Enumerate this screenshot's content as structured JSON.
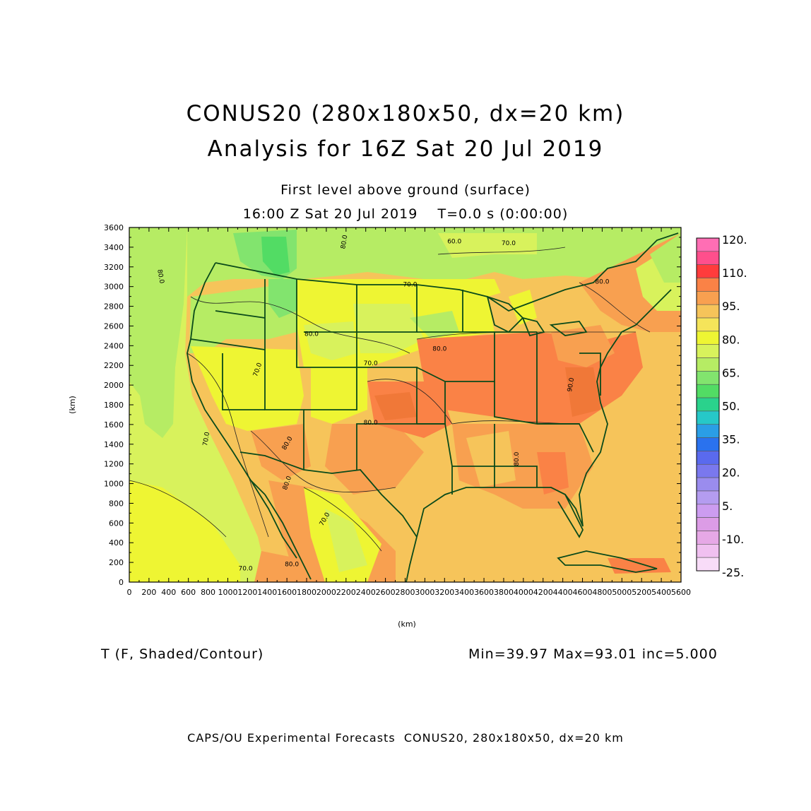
{
  "title": "CONUS20 (280x180x50, dx=20 km)",
  "subtitle": "Analysis for 16Z Sat 20 Jul 2019",
  "level": "First level above ground (surface)",
  "valid_time": "16:00 Z Sat 20 Jul 2019    T=0.0 s (0:00:00)",
  "field_label": "T (F, Shaded/Contour)",
  "stats": "Min=39.97 Max=93.01 inc=5.000",
  "footer": "CAPS/OU Experimental Forecasts  CONUS20, 280x180x50, dx=20 km",
  "axes": {
    "x_label": "(km)",
    "y_label": "(km)",
    "x_ticks": [
      "0",
      "200",
      "400",
      "600",
      "800",
      "1000",
      "1200",
      "1400",
      "1600",
      "1800",
      "2000",
      "2200",
      "2400",
      "2600",
      "2800",
      "3000",
      "3200",
      "3400",
      "3600",
      "3800",
      "4000",
      "4200",
      "4400",
      "4600",
      "4800",
      "5000",
      "5200",
      "5400",
      "5600"
    ],
    "y_ticks": [
      "0",
      "200",
      "400",
      "600",
      "800",
      "1000",
      "1200",
      "1400",
      "1600",
      "1800",
      "2000",
      "2200",
      "2400",
      "2600",
      "2800",
      "3000",
      "3200",
      "3400",
      "3600"
    ],
    "x_range": [
      0,
      5600
    ],
    "y_range": [
      0,
      3600
    ]
  },
  "colorbar": {
    "labels": [
      "120.",
      "110.",
      "95.",
      "80.",
      "65.",
      "50.",
      "35.",
      "20.",
      "5.",
      "-10.",
      "-25."
    ],
    "colors": [
      "#ff6eb4",
      "#ff4f8c",
      "#ff3c3c",
      "#fa8246",
      "#f8a050",
      "#f6c45a",
      "#f5e45a",
      "#eef533",
      "#d8f25c",
      "#b6ec64",
      "#82e46e",
      "#52dc64",
      "#2ad28c",
      "#26c8c8",
      "#2a9ee6",
      "#2a72ee",
      "#5a6aee",
      "#7a78ee",
      "#9a8cee",
      "#b49cf0",
      "#cc9cf0",
      "#dc9ce6",
      "#e6a8e6",
      "#f0c0f0",
      "#f8dcf8"
    ]
  },
  "contour_labels": [
    {
      "text": "80.0",
      "x": 300,
      "y": 3100,
      "angle": 80
    },
    {
      "text": "80.0",
      "x": 2200,
      "y": 3450,
      "angle": -80
    },
    {
      "text": "60.0",
      "x": 3300,
      "y": 3440,
      "angle": 0
    },
    {
      "text": "70.0",
      "x": 3850,
      "y": 3420,
      "angle": 0
    },
    {
      "text": "80.0",
      "x": 4800,
      "y": 3030,
      "angle": 0
    },
    {
      "text": "70.0",
      "x": 2850,
      "y": 3000,
      "angle": 0
    },
    {
      "text": "80.0",
      "x": 1850,
      "y": 2500,
      "angle": 0
    },
    {
      "text": "70.0",
      "x": 2450,
      "y": 2200,
      "angle": 0
    },
    {
      "text": "80.0",
      "x": 3150,
      "y": 2350,
      "angle": 0
    },
    {
      "text": "70.0",
      "x": 1320,
      "y": 2150,
      "angle": -70
    },
    {
      "text": "90.0",
      "x": 4500,
      "y": 2000,
      "angle": -80
    },
    {
      "text": "80.0",
      "x": 2450,
      "y": 1600,
      "angle": 0
    },
    {
      "text": "80.0",
      "x": 1620,
      "y": 1400,
      "angle": -60
    },
    {
      "text": "70.0",
      "x": 800,
      "y": 1450,
      "angle": -80
    },
    {
      "text": "80.0",
      "x": 3950,
      "y": 1250,
      "angle": -90
    },
    {
      "text": "80.0",
      "x": 1620,
      "y": 1000,
      "angle": -70
    },
    {
      "text": "70.0",
      "x": 2000,
      "y": 630,
      "angle": -60
    },
    {
      "text": "80.0",
      "x": 1650,
      "y": 160,
      "angle": 0
    },
    {
      "text": "70.0",
      "x": 1180,
      "y": 120,
      "angle": 0
    }
  ]
}
